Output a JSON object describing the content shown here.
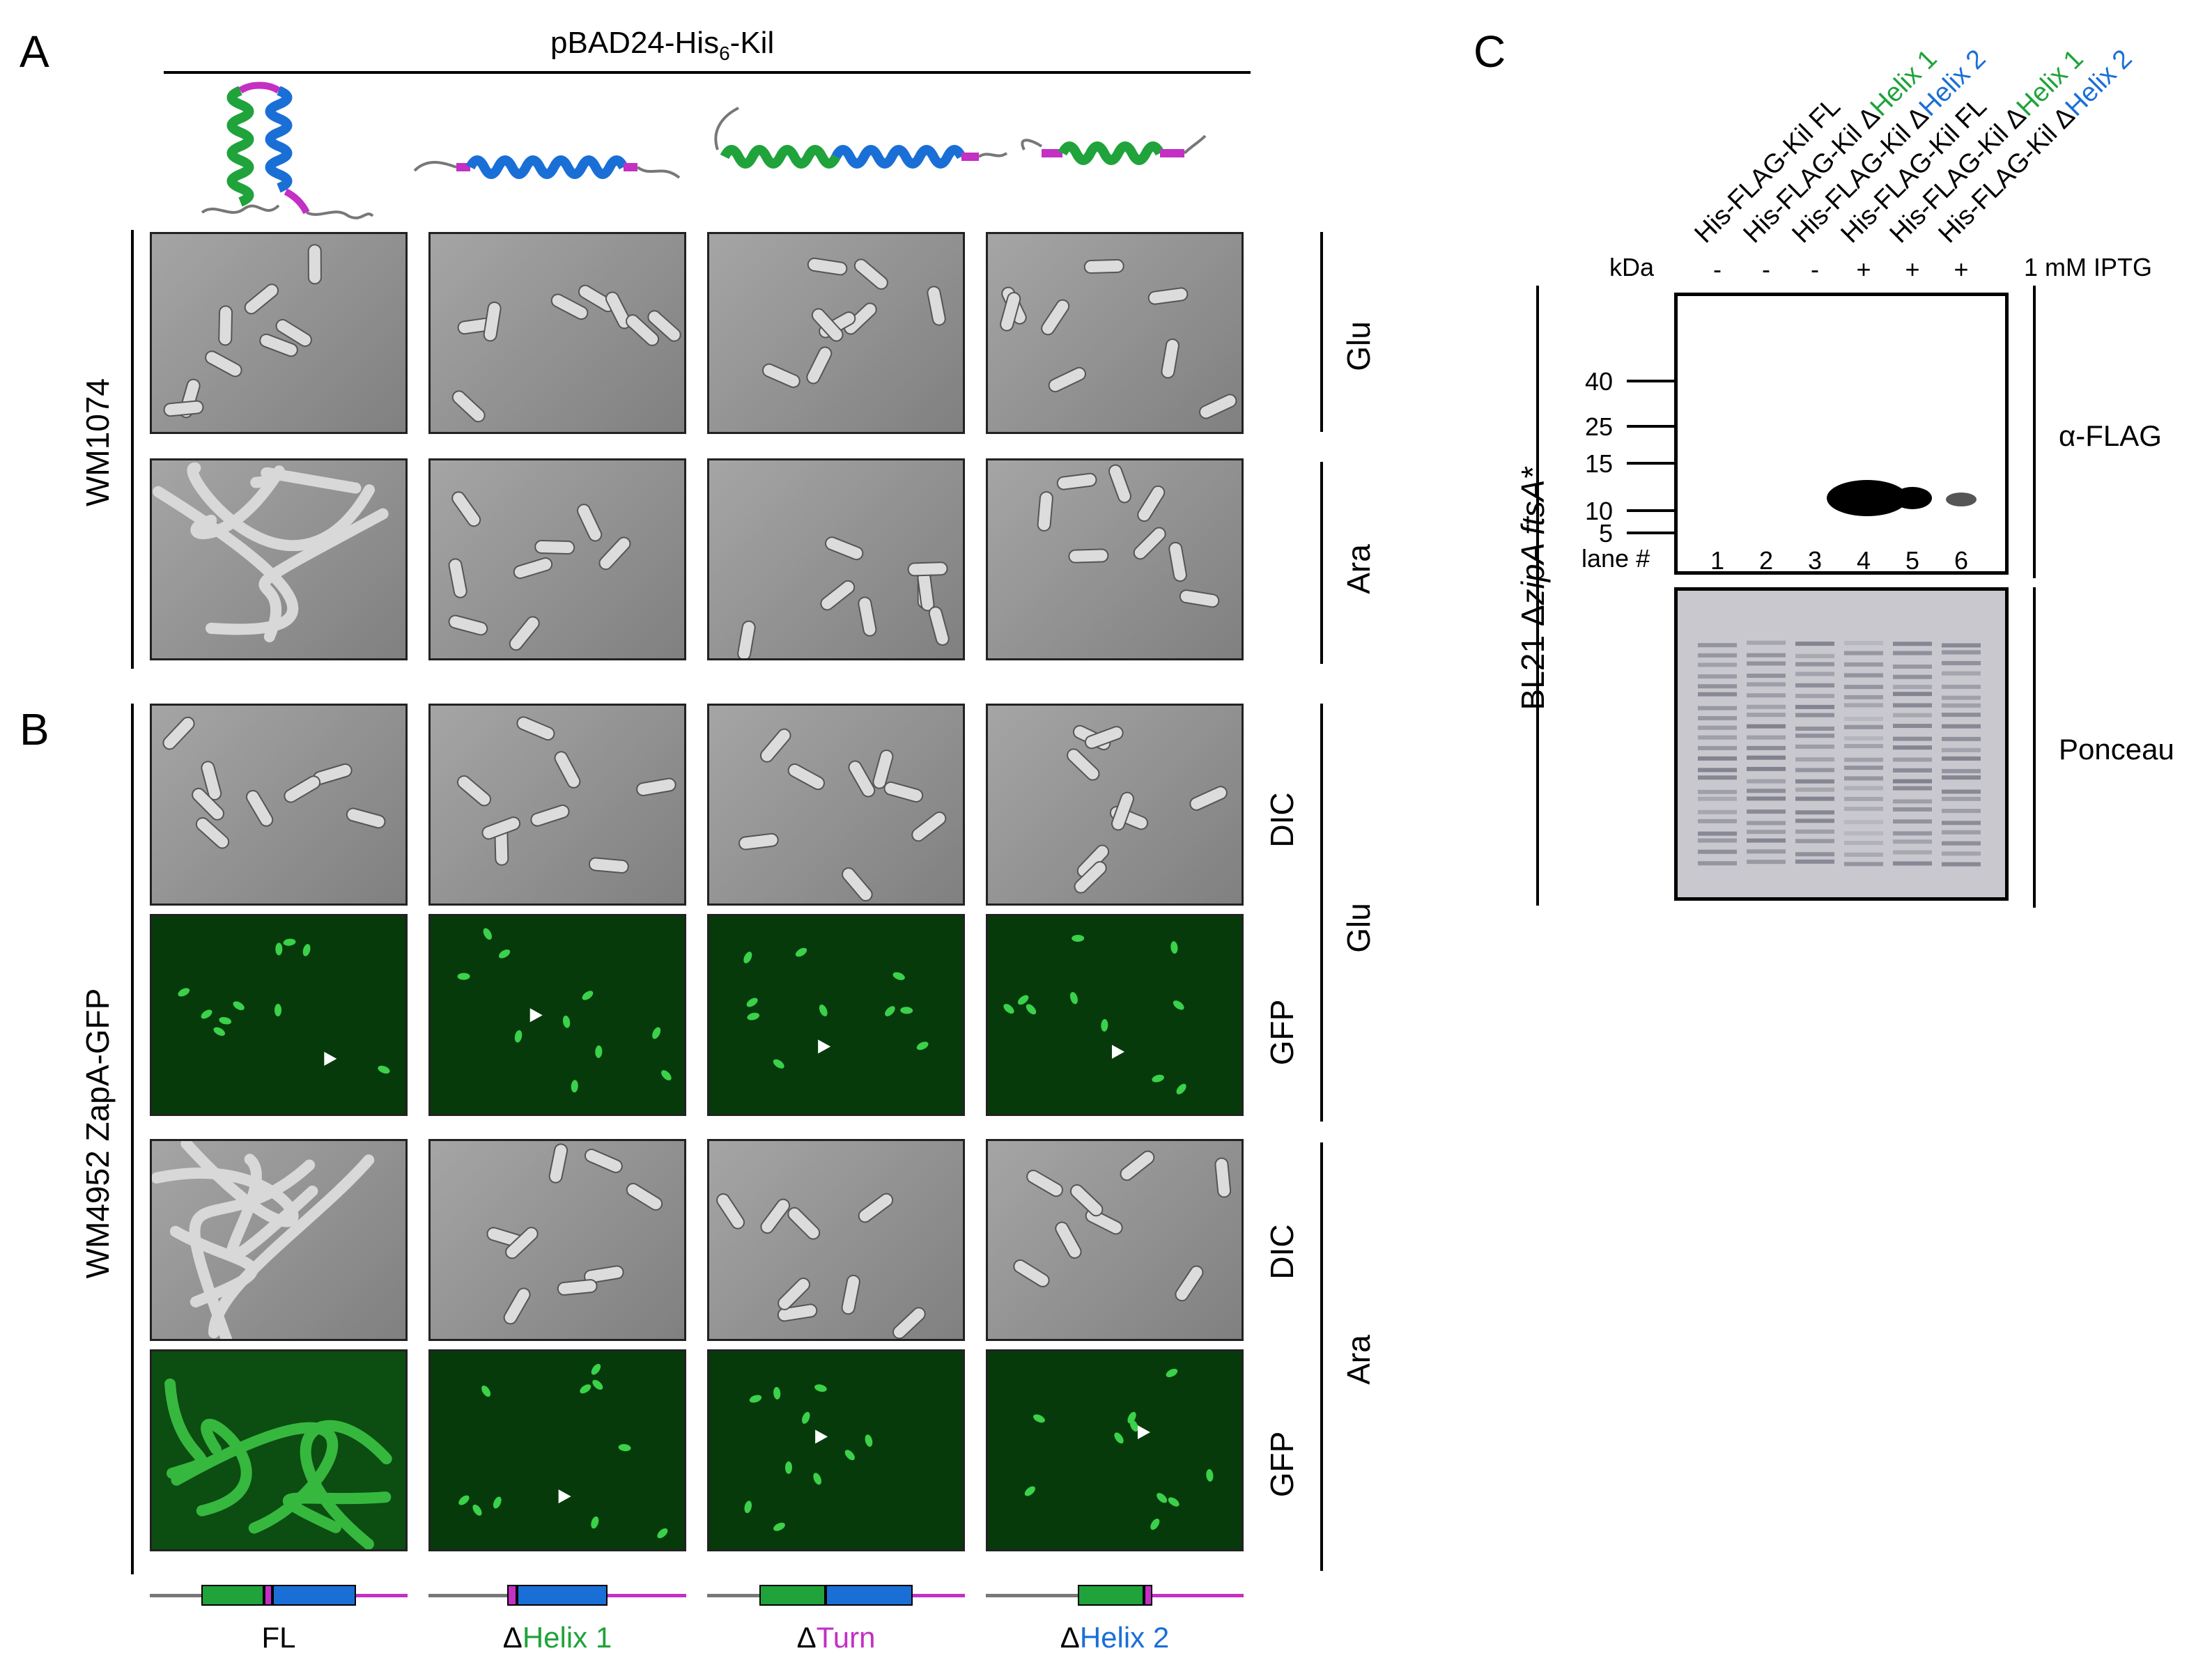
{
  "panel_letters": {
    "a": "A",
    "b": "B",
    "c": "C"
  },
  "panel_a": {
    "construct_title": "pBAD24-His",
    "construct_sub": "6",
    "construct_suffix": "-Kil",
    "strain": "WM1074",
    "row_conditions": [
      "Glu",
      "Ara"
    ]
  },
  "panel_b": {
    "strain": "WM4952 ZapA-GFP",
    "channels": [
      "DIC",
      "GFP",
      "DIC",
      "GFP"
    ],
    "conditions": [
      "Glu",
      "Ara"
    ]
  },
  "constructs": [
    {
      "prefix": "",
      "name": "FL",
      "color": "#000000"
    },
    {
      "prefix": "Δ",
      "name": "Helix 1",
      "color": "#1fa33a"
    },
    {
      "prefix": "Δ",
      "name": "Turn",
      "color": "#c42fc4"
    },
    {
      "prefix": "Δ",
      "name": "Helix 2",
      "color": "#1a6fd6"
    }
  ],
  "panel_c": {
    "strain_prefix": "BL21 Δ",
    "strain_gene1": "zipA ftsA",
    "strain_suffix": "*",
    "kda_label": "kDa",
    "iptg_label": "1 mM IPTG",
    "lane_label": "lane #",
    "lanes": [
      {
        "number": "1",
        "iptg": "-",
        "base": "His-FLAG-Kil ",
        "mut": "FL",
        "mut_color": "#000000",
        "delta": ""
      },
      {
        "number": "2",
        "iptg": "-",
        "base": "His-FLAG-Kil ",
        "mut": "Helix 1",
        "mut_color": "#1fa33a",
        "delta": "Δ"
      },
      {
        "number": "3",
        "iptg": "-",
        "base": "His-FLAG-Kil ",
        "mut": "Helix 2",
        "mut_color": "#1a6fd6",
        "delta": "Δ"
      },
      {
        "number": "4",
        "iptg": "+",
        "base": "His-FLAG-Kil ",
        "mut": "FL",
        "mut_color": "#000000",
        "delta": ""
      },
      {
        "number": "5",
        "iptg": "+",
        "base": "His-FLAG-Kil ",
        "mut": "Helix 1",
        "mut_color": "#1fa33a",
        "delta": "Δ"
      },
      {
        "number": "6",
        "iptg": "+",
        "base": "His-FLAG-Kil ",
        "mut": "Helix 2",
        "mut_color": "#1a6fd6",
        "delta": "Δ"
      }
    ],
    "mw_markers": [
      "40",
      "25",
      "15",
      "10",
      "5"
    ],
    "blot_labels": {
      "western": "α-FLAG",
      "stain": "Ponceau"
    }
  },
  "colors": {
    "helix1": "#1fa33a",
    "turn": "#c42fc4",
    "helix2": "#1a6fd6",
    "gfp": "#3bd14a"
  }
}
